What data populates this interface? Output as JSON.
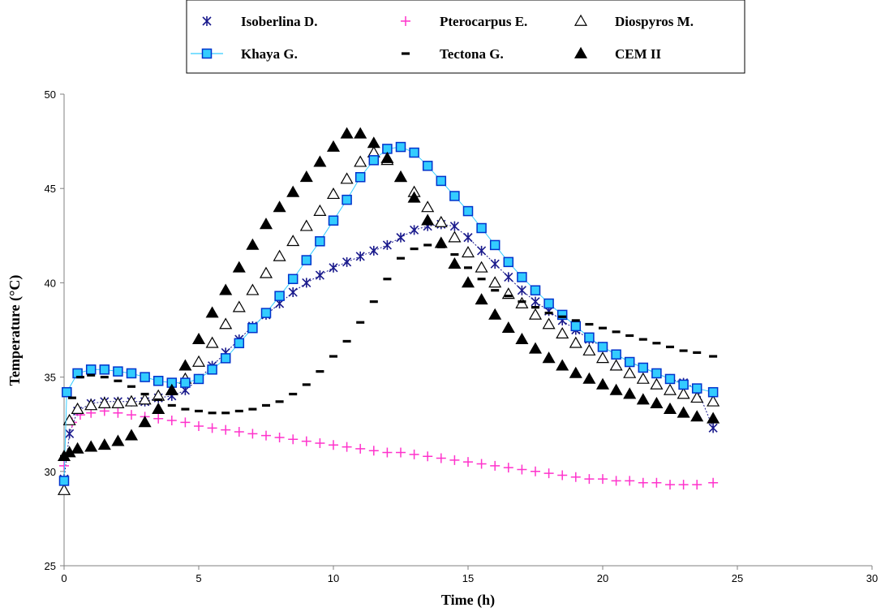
{
  "chart_data": {
    "type": "scatter",
    "title": "",
    "xlabel": "Time (h)",
    "ylabel": "Temperature (°C)",
    "xlim": [
      0,
      30
    ],
    "ylim": [
      25,
      50
    ],
    "xticks": [
      "0",
      "5",
      "10",
      "15",
      "20",
      "25",
      "30"
    ],
    "yticks": [
      "25",
      "30",
      "35",
      "40",
      "45",
      "50"
    ],
    "grid": false,
    "legend_position": "top",
    "series": [
      {
        "name": "Isoberlina D.",
        "marker": "star",
        "color": "#1a1a8c",
        "points": [
          [
            0,
            29.6
          ],
          [
            0.2,
            32.0
          ],
          [
            0.5,
            33.2
          ],
          [
            1,
            33.6
          ],
          [
            1.5,
            33.7
          ],
          [
            2,
            33.7
          ],
          [
            2.5,
            33.7
          ],
          [
            3,
            33.7
          ],
          [
            3.5,
            33.9
          ],
          [
            4,
            34.0
          ],
          [
            4.5,
            34.3
          ],
          [
            5,
            34.9
          ],
          [
            5.5,
            35.6
          ],
          [
            6,
            36.3
          ],
          [
            6.5,
            37.0
          ],
          [
            7,
            37.7
          ],
          [
            7.5,
            38.3
          ],
          [
            8,
            38.9
          ],
          [
            8.5,
            39.5
          ],
          [
            9,
            40.0
          ],
          [
            9.5,
            40.4
          ],
          [
            10,
            40.8
          ],
          [
            10.5,
            41.1
          ],
          [
            11,
            41.4
          ],
          [
            11.5,
            41.7
          ],
          [
            12,
            42.0
          ],
          [
            12.5,
            42.4
          ],
          [
            13,
            42.8
          ],
          [
            13.5,
            43.0
          ],
          [
            14,
            43.1
          ],
          [
            14.5,
            43.0
          ],
          [
            15,
            42.4
          ],
          [
            15.5,
            41.7
          ],
          [
            16,
            41.0
          ],
          [
            16.5,
            40.3
          ],
          [
            17,
            39.6
          ],
          [
            17.5,
            39.0
          ],
          [
            18,
            38.5
          ],
          [
            18.5,
            38.0
          ],
          [
            19,
            37.5
          ],
          [
            19.5,
            37.0
          ],
          [
            20,
            36.6
          ],
          [
            20.5,
            36.2
          ],
          [
            21,
            35.8
          ],
          [
            21.5,
            35.5
          ],
          [
            22,
            35.2
          ],
          [
            22.5,
            34.9
          ],
          [
            23,
            34.7
          ],
          [
            23.5,
            34.4
          ],
          [
            24.1,
            32.3
          ]
        ]
      },
      {
        "name": "Pterocarpus E.",
        "marker": "plus",
        "color": "#ff33cc",
        "points": [
          [
            0,
            30.3
          ],
          [
            0.3,
            32.6
          ],
          [
            0.6,
            33.0
          ],
          [
            1,
            33.1
          ],
          [
            1.5,
            33.2
          ],
          [
            2,
            33.1
          ],
          [
            2.5,
            33.0
          ],
          [
            3,
            32.9
          ],
          [
            3.5,
            32.8
          ],
          [
            4,
            32.7
          ],
          [
            4.5,
            32.6
          ],
          [
            5,
            32.4
          ],
          [
            5.5,
            32.3
          ],
          [
            6,
            32.2
          ],
          [
            6.5,
            32.1
          ],
          [
            7,
            32.0
          ],
          [
            7.5,
            31.9
          ],
          [
            8,
            31.8
          ],
          [
            8.5,
            31.7
          ],
          [
            9,
            31.6
          ],
          [
            9.5,
            31.5
          ],
          [
            10,
            31.4
          ],
          [
            10.5,
            31.3
          ],
          [
            11,
            31.2
          ],
          [
            11.5,
            31.1
          ],
          [
            12,
            31.0
          ],
          [
            12.5,
            31.0
          ],
          [
            13,
            30.9
          ],
          [
            13.5,
            30.8
          ],
          [
            14,
            30.7
          ],
          [
            14.5,
            30.6
          ],
          [
            15,
            30.5
          ],
          [
            15.5,
            30.4
          ],
          [
            16,
            30.3
          ],
          [
            16.5,
            30.2
          ],
          [
            17,
            30.1
          ],
          [
            17.5,
            30.0
          ],
          [
            18,
            29.9
          ],
          [
            18.5,
            29.8
          ],
          [
            19,
            29.7
          ],
          [
            19.5,
            29.6
          ],
          [
            20,
            29.6
          ],
          [
            20.5,
            29.5
          ],
          [
            21,
            29.5
          ],
          [
            21.5,
            29.4
          ],
          [
            22,
            29.4
          ],
          [
            22.5,
            29.3
          ],
          [
            23,
            29.3
          ],
          [
            23.5,
            29.3
          ],
          [
            24.1,
            29.4
          ]
        ]
      },
      {
        "name": "Diospyros M.",
        "marker": "triangle-open",
        "color": "#000000",
        "points": [
          [
            0,
            29.0
          ],
          [
            0.2,
            32.7
          ],
          [
            0.5,
            33.3
          ],
          [
            1,
            33.5
          ],
          [
            1.5,
            33.6
          ],
          [
            2,
            33.6
          ],
          [
            2.5,
            33.7
          ],
          [
            3,
            33.8
          ],
          [
            3.5,
            34.0
          ],
          [
            4,
            34.3
          ],
          [
            4.5,
            34.9
          ],
          [
            5,
            35.8
          ],
          [
            5.5,
            36.8
          ],
          [
            6,
            37.8
          ],
          [
            6.5,
            38.7
          ],
          [
            7,
            39.6
          ],
          [
            7.5,
            40.5
          ],
          [
            8,
            41.4
          ],
          [
            8.5,
            42.2
          ],
          [
            9,
            43.0
          ],
          [
            9.5,
            43.8
          ],
          [
            10,
            44.7
          ],
          [
            10.5,
            45.5
          ],
          [
            11,
            46.4
          ],
          [
            11.5,
            46.9
          ],
          [
            12,
            46.5
          ],
          [
            12.5,
            45.6
          ],
          [
            13,
            44.8
          ],
          [
            13.5,
            44.0
          ],
          [
            14,
            43.2
          ],
          [
            14.5,
            42.4
          ],
          [
            15,
            41.6
          ],
          [
            15.5,
            40.8
          ],
          [
            16,
            40.0
          ],
          [
            16.5,
            39.4
          ],
          [
            17,
            38.9
          ],
          [
            17.5,
            38.3
          ],
          [
            18,
            37.8
          ],
          [
            18.5,
            37.3
          ],
          [
            19,
            36.8
          ],
          [
            19.5,
            36.4
          ],
          [
            20,
            36.0
          ],
          [
            20.5,
            35.6
          ],
          [
            21,
            35.2
          ],
          [
            21.5,
            34.9
          ],
          [
            22,
            34.6
          ],
          [
            22.5,
            34.3
          ],
          [
            23,
            34.1
          ],
          [
            23.5,
            33.9
          ],
          [
            24.1,
            33.7
          ]
        ]
      },
      {
        "name": "Khaya G.",
        "marker": "square",
        "color": "#33ccff",
        "points": [
          [
            0,
            29.5
          ],
          [
            0.1,
            34.2
          ],
          [
            0.5,
            35.2
          ],
          [
            1,
            35.4
          ],
          [
            1.5,
            35.4
          ],
          [
            2,
            35.3
          ],
          [
            2.5,
            35.2
          ],
          [
            3,
            35.0
          ],
          [
            3.5,
            34.8
          ],
          [
            4,
            34.7
          ],
          [
            4.5,
            34.7
          ],
          [
            5,
            34.9
          ],
          [
            5.5,
            35.4
          ],
          [
            6,
            36.0
          ],
          [
            6.5,
            36.8
          ],
          [
            7,
            37.6
          ],
          [
            7.5,
            38.4
          ],
          [
            8,
            39.3
          ],
          [
            8.5,
            40.2
          ],
          [
            9,
            41.2
          ],
          [
            9.5,
            42.2
          ],
          [
            10,
            43.3
          ],
          [
            10.5,
            44.4
          ],
          [
            11,
            45.6
          ],
          [
            11.5,
            46.5
          ],
          [
            12,
            47.1
          ],
          [
            12.5,
            47.2
          ],
          [
            13,
            46.9
          ],
          [
            13.5,
            46.2
          ],
          [
            14,
            45.4
          ],
          [
            14.5,
            44.6
          ],
          [
            15,
            43.8
          ],
          [
            15.5,
            42.9
          ],
          [
            16,
            42.0
          ],
          [
            16.5,
            41.1
          ],
          [
            17,
            40.3
          ],
          [
            17.5,
            39.6
          ],
          [
            18,
            38.9
          ],
          [
            18.5,
            38.3
          ],
          [
            19,
            37.7
          ],
          [
            19.5,
            37.1
          ],
          [
            20,
            36.6
          ],
          [
            20.5,
            36.2
          ],
          [
            21,
            35.8
          ],
          [
            21.5,
            35.5
          ],
          [
            22,
            35.2
          ],
          [
            22.5,
            34.9
          ],
          [
            23,
            34.6
          ],
          [
            23.5,
            34.4
          ],
          [
            24.1,
            34.2
          ]
        ]
      },
      {
        "name": "Tectona G.",
        "marker": "dash",
        "color": "#000000",
        "points": [
          [
            0,
            30.8
          ],
          [
            0.3,
            33.9
          ],
          [
            0.6,
            35.0
          ],
          [
            1,
            35.1
          ],
          [
            1.5,
            35.0
          ],
          [
            2,
            34.8
          ],
          [
            2.5,
            34.5
          ],
          [
            3,
            34.1
          ],
          [
            3.5,
            33.8
          ],
          [
            4,
            33.5
          ],
          [
            4.5,
            33.3
          ],
          [
            5,
            33.2
          ],
          [
            5.5,
            33.1
          ],
          [
            6,
            33.1
          ],
          [
            6.5,
            33.2
          ],
          [
            7,
            33.3
          ],
          [
            7.5,
            33.5
          ],
          [
            8,
            33.7
          ],
          [
            8.5,
            34.1
          ],
          [
            9,
            34.6
          ],
          [
            9.5,
            35.3
          ],
          [
            10,
            36.1
          ],
          [
            10.5,
            36.9
          ],
          [
            11,
            37.9
          ],
          [
            11.5,
            39.0
          ],
          [
            12,
            40.2
          ],
          [
            12.5,
            41.3
          ],
          [
            13,
            41.8
          ],
          [
            13.5,
            42.0
          ],
          [
            14,
            41.9
          ],
          [
            14.5,
            41.5
          ],
          [
            15,
            40.8
          ],
          [
            15.5,
            40.2
          ],
          [
            16,
            39.6
          ],
          [
            16.5,
            39.3
          ],
          [
            17,
            39.0
          ],
          [
            17.5,
            38.7
          ],
          [
            18,
            38.4
          ],
          [
            18.5,
            38.2
          ],
          [
            19,
            38.0
          ],
          [
            19.5,
            37.8
          ],
          [
            20,
            37.6
          ],
          [
            20.5,
            37.4
          ],
          [
            21,
            37.2
          ],
          [
            21.5,
            37.0
          ],
          [
            22,
            36.8
          ],
          [
            22.5,
            36.6
          ],
          [
            23,
            36.4
          ],
          [
            23.5,
            36.3
          ],
          [
            24.1,
            36.1
          ]
        ]
      },
      {
        "name": "CEM II",
        "marker": "triangle-filled",
        "color": "#000000",
        "points": [
          [
            0,
            30.8
          ],
          [
            0.2,
            31.0
          ],
          [
            0.5,
            31.2
          ],
          [
            1,
            31.3
          ],
          [
            1.5,
            31.4
          ],
          [
            2,
            31.6
          ],
          [
            2.5,
            31.9
          ],
          [
            3,
            32.6
          ],
          [
            3.5,
            33.3
          ],
          [
            4,
            34.3
          ],
          [
            4.5,
            35.6
          ],
          [
            5,
            37.0
          ],
          [
            5.5,
            38.4
          ],
          [
            6,
            39.6
          ],
          [
            6.5,
            40.8
          ],
          [
            7,
            42.0
          ],
          [
            7.5,
            43.1
          ],
          [
            8,
            44.0
          ],
          [
            8.5,
            44.8
          ],
          [
            9,
            45.6
          ],
          [
            9.5,
            46.4
          ],
          [
            10,
            47.2
          ],
          [
            10.5,
            47.9
          ],
          [
            11,
            47.9
          ],
          [
            11.5,
            47.4
          ],
          [
            12,
            46.6
          ],
          [
            12.5,
            45.6
          ],
          [
            13,
            44.5
          ],
          [
            13.5,
            43.3
          ],
          [
            14,
            42.1
          ],
          [
            14.5,
            41.0
          ],
          [
            15,
            40.0
          ],
          [
            15.5,
            39.1
          ],
          [
            16,
            38.3
          ],
          [
            16.5,
            37.6
          ],
          [
            17,
            37.0
          ],
          [
            17.5,
            36.5
          ],
          [
            18,
            36.0
          ],
          [
            18.5,
            35.6
          ],
          [
            19,
            35.2
          ],
          [
            19.5,
            34.9
          ],
          [
            20,
            34.6
          ],
          [
            20.5,
            34.3
          ],
          [
            21,
            34.1
          ],
          [
            21.5,
            33.8
          ],
          [
            22,
            33.6
          ],
          [
            22.5,
            33.3
          ],
          [
            23,
            33.1
          ],
          [
            23.5,
            32.9
          ],
          [
            24.1,
            32.8
          ]
        ]
      }
    ]
  }
}
